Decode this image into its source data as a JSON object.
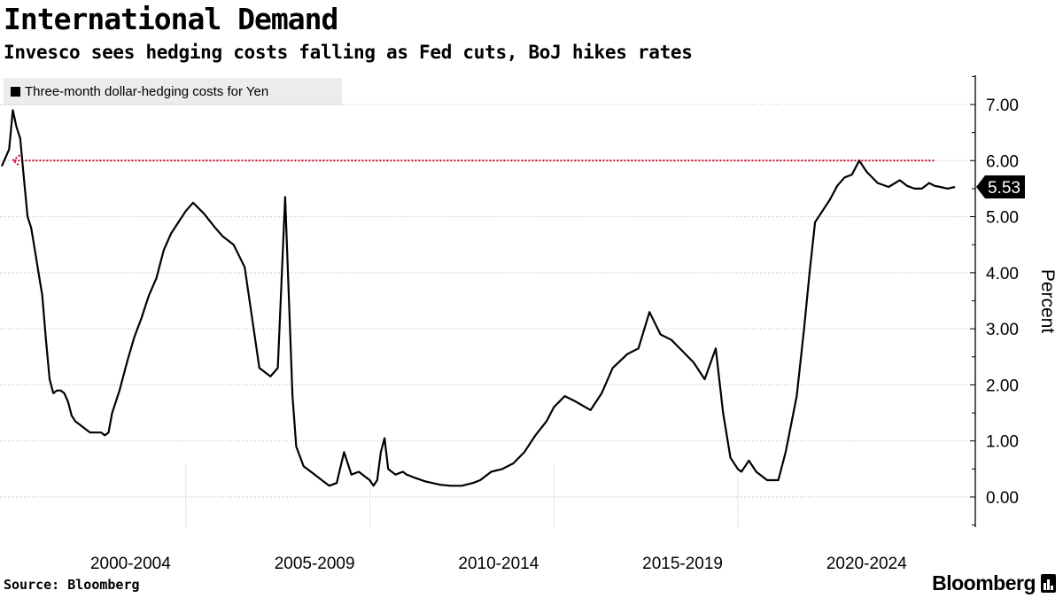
{
  "title": "International Demand",
  "subtitle": "Invesco sees hedging costs falling as Fed cuts, BoJ hikes rates",
  "source": "Source: Bloomberg",
  "brand": "Bloomberg",
  "legend_label": "Three-month dollar-hedging costs for Yen",
  "colors": {
    "line": "#000000",
    "reference": "#cc0022",
    "grid": "#bbbbbb"
  },
  "chart_data": {
    "type": "line",
    "title": "International Demand",
    "subtitle": "Invesco sees hedging costs falling as Fed cuts, BoJ hikes rates",
    "xlabel": "",
    "ylabel": "Percent",
    "xlim": [
      1999.0,
      2024.9
    ],
    "ylim": [
      -0.5,
      7.5
    ],
    "yticks": [
      0,
      1,
      2,
      3,
      4,
      5,
      6,
      7
    ],
    "ytick_labels": [
      "0.00",
      "1.00",
      "2.00",
      "3.00",
      "4.00",
      "5.00",
      "6.00",
      "7.00"
    ],
    "x_category_labels": [
      {
        "label": "2000-2004",
        "center": 2002.5
      },
      {
        "label": "2005-2009",
        "center": 2007.5
      },
      {
        "label": "2010-2014",
        "center": 2012.5
      },
      {
        "label": "2015-2019",
        "center": 2017.5
      },
      {
        "label": "2020-2024",
        "center": 2022.5
      }
    ],
    "x_gridlines": [
      2004.0,
      2009.0,
      2014.0,
      2019.0
    ],
    "grid": true,
    "legend_position": "top-left",
    "last_value_label": "5.53",
    "last_value": 5.53,
    "reference_line": {
      "y": 6.0,
      "x_start": 1999.25,
      "x_end": 2024.35,
      "style": "dotted-arrow"
    },
    "series": [
      {
        "name": "Three-month dollar-hedging costs for Yen",
        "x": [
          1999.0,
          1999.2,
          1999.3,
          1999.4,
          1999.5,
          1999.6,
          1999.7,
          1999.8,
          1999.9,
          2000.0,
          2000.1,
          2000.2,
          2000.3,
          2000.4,
          2000.5,
          2000.6,
          2000.7,
          2000.8,
          2000.9,
          2001.0,
          2001.1,
          2001.2,
          2001.3,
          2001.4,
          2001.5,
          2001.6,
          2001.7,
          2001.8,
          2001.9,
          2002.0,
          2002.2,
          2002.4,
          2002.6,
          2002.8,
          2002.9,
          2003.0,
          2003.2,
          2003.4,
          2003.6,
          2003.8,
          2004.0,
          2004.2,
          2004.5,
          2004.8,
          2005.0,
          2005.3,
          2005.6,
          2006.0,
          2006.3,
          2006.5,
          2006.7,
          2006.9,
          2007.0,
          2007.2,
          2007.4,
          2007.6,
          2007.8,
          2007.9,
          2008.1,
          2008.3,
          2008.5,
          2008.7,
          2008.9,
          2009.0,
          2009.1,
          2009.2,
          2009.3,
          2009.4,
          2009.5,
          2009.7,
          2009.9,
          2010.0,
          2010.2,
          2010.5,
          2010.7,
          2010.9,
          2011.2,
          2011.5,
          2011.8,
          2012.0,
          2012.3,
          2012.6,
          2012.9,
          2013.2,
          2013.5,
          2013.8,
          2014.0,
          2014.3,
          2014.6,
          2015.0,
          2015.3,
          2015.6,
          2016.0,
          2016.3,
          2016.6,
          2016.9,
          2017.2,
          2017.5,
          2017.8,
          2018.1,
          2018.4,
          2018.6,
          2018.8,
          2019.0,
          2019.1,
          2019.2,
          2019.3,
          2019.5,
          2019.8,
          2020.1,
          2020.3,
          2020.6,
          2020.8,
          2020.95,
          2021.1,
          2021.3,
          2021.5,
          2021.7,
          2021.9,
          2022.1,
          2022.3,
          2022.5,
          2022.8,
          2023.1,
          2023.4,
          2023.6,
          2023.8,
          2024.0,
          2024.2,
          2024.35,
          2024.5,
          2024.7,
          2024.9
        ],
        "values": [
          5.9,
          6.2,
          6.9,
          6.6,
          6.4,
          5.7,
          5.0,
          4.8,
          4.4,
          4.0,
          3.6,
          2.8,
          2.1,
          1.85,
          1.9,
          1.9,
          1.85,
          1.7,
          1.45,
          1.35,
          1.3,
          1.25,
          1.2,
          1.15,
          1.15,
          1.15,
          1.15,
          1.1,
          1.15,
          1.5,
          1.9,
          2.4,
          2.85,
          3.2,
          3.4,
          3.6,
          3.9,
          4.4,
          4.7,
          4.9,
          5.1,
          5.25,
          5.05,
          4.8,
          4.65,
          4.5,
          4.1,
          2.3,
          2.15,
          2.3,
          5.35,
          1.8,
          0.9,
          0.55,
          0.45,
          0.35,
          0.25,
          0.2,
          0.25,
          0.8,
          0.4,
          0.45,
          0.35,
          0.3,
          0.2,
          0.3,
          0.8,
          1.05,
          0.5,
          0.4,
          0.45,
          0.4,
          0.35,
          0.28,
          0.25,
          0.22,
          0.2,
          0.2,
          0.25,
          0.3,
          0.45,
          0.5,
          0.6,
          0.8,
          1.1,
          1.35,
          1.6,
          1.8,
          1.7,
          1.55,
          1.85,
          2.3,
          2.55,
          2.65,
          3.3,
          2.9,
          2.8,
          2.6,
          2.4,
          2.1,
          2.65,
          1.5,
          0.7,
          0.5,
          0.45,
          0.55,
          0.65,
          0.45,
          0.3,
          0.3,
          0.8,
          1.8,
          3.0,
          4.0,
          4.9,
          5.1,
          5.3,
          5.55,
          5.7,
          5.75,
          6.0,
          5.8,
          5.6,
          5.53,
          5.65,
          5.55,
          5.5,
          5.5,
          5.6,
          5.55,
          5.53,
          5.5,
          5.53
        ]
      }
    ]
  }
}
